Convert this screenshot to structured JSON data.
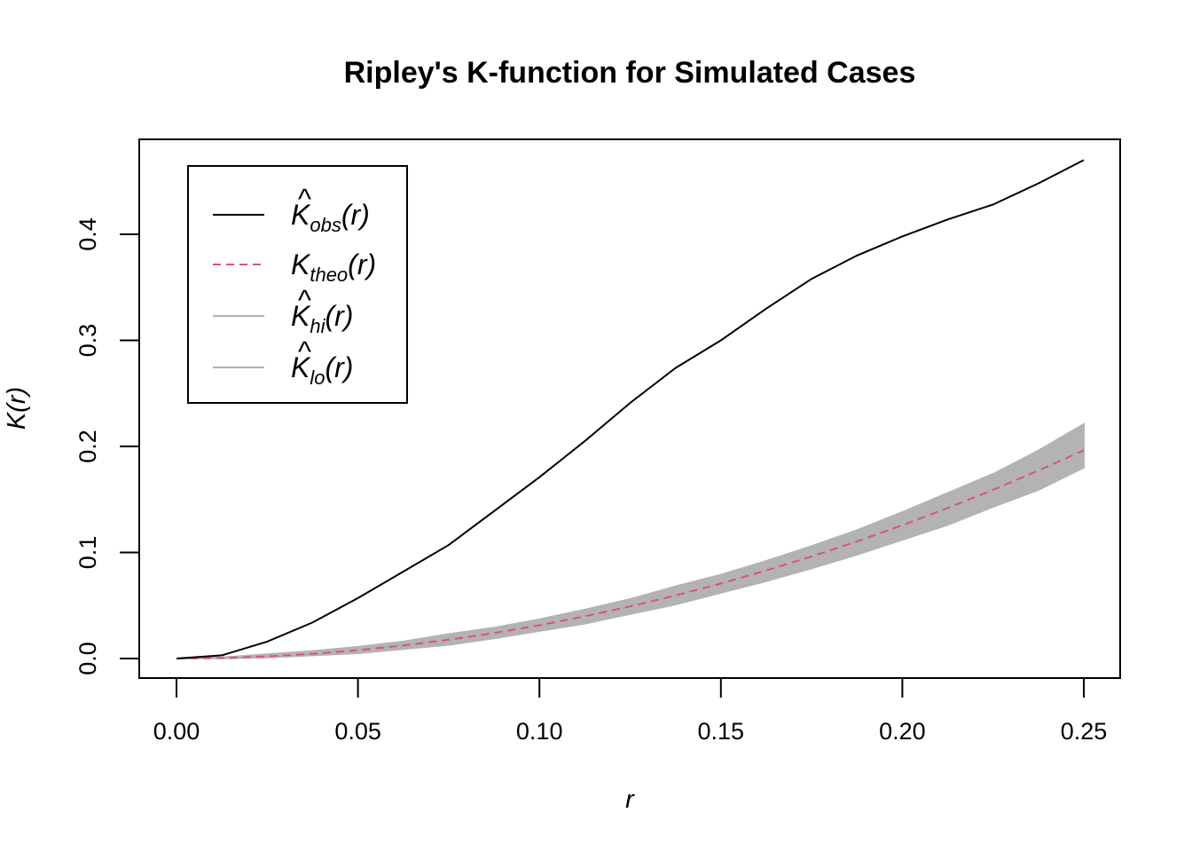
{
  "chart_data": {
    "type": "line",
    "title": "Ripley's K-function for Simulated Cases",
    "xlabel": "r",
    "ylabel": "K(r)",
    "xlim": [
      0,
      0.25
    ],
    "ylim": [
      0,
      0.47
    ],
    "x_ticks": [
      "0.00",
      "0.05",
      "0.10",
      "0.15",
      "0.20",
      "0.25"
    ],
    "y_ticks": [
      "0.0",
      "0.1",
      "0.2",
      "0.3",
      "0.4"
    ],
    "grid": false,
    "legend_position": "top-left",
    "colors": {
      "observed": "#000000",
      "theoretical": "#DF536B",
      "envelope": "#B3B3B3"
    },
    "legend": [
      {
        "base": "K",
        "hat": "^",
        "sub": "obs",
        "paren": "(r)",
        "style": "solid",
        "color": "#000000"
      },
      {
        "base": "K",
        "hat": "",
        "sub": "theo",
        "paren": "(r)",
        "style": "dashed",
        "color": "#DF536B"
      },
      {
        "base": "K",
        "hat": "^",
        "sub": "hi",
        "paren": "(r)",
        "style": "solid",
        "color": "#B3B3B3"
      },
      {
        "base": "K",
        "hat": "^",
        "sub": "lo",
        "paren": "(r)",
        "style": "solid",
        "color": "#B3B3B3"
      }
    ],
    "x": [
      0,
      0.0125,
      0.025,
      0.0375,
      0.05,
      0.0625,
      0.075,
      0.0875,
      0.1,
      0.1125,
      0.125,
      0.1375,
      0.15,
      0.1625,
      0.175,
      0.1875,
      0.2,
      0.2125,
      0.225,
      0.2375,
      0.25
    ],
    "series": [
      {
        "name": "obs",
        "values": [
          0,
          0.003,
          0.016,
          0.034,
          0.057,
          0.082,
          0.107,
          0.139,
          0.171,
          0.205,
          0.241,
          0.274,
          0.3,
          0.33,
          0.358,
          0.38,
          0.398,
          0.414,
          0.428,
          0.448,
          0.47
        ]
      },
      {
        "name": "theo",
        "values": [
          0,
          0.0005,
          0.002,
          0.0044,
          0.0079,
          0.0123,
          0.0177,
          0.024,
          0.0314,
          0.0398,
          0.0491,
          0.0594,
          0.0707,
          0.083,
          0.0962,
          0.1105,
          0.1257,
          0.1419,
          0.159,
          0.1772,
          0.1963
        ]
      },
      {
        "name": "hi",
        "values": [
          0,
          0.001,
          0.004,
          0.007,
          0.011,
          0.016,
          0.023,
          0.029,
          0.037,
          0.046,
          0.056,
          0.068,
          0.079,
          0.092,
          0.106,
          0.121,
          0.138,
          0.156,
          0.174,
          0.196,
          0.221
        ]
      },
      {
        "name": "lo",
        "values": [
          0,
          0.0002,
          0.001,
          0.003,
          0.005,
          0.009,
          0.013,
          0.019,
          0.026,
          0.033,
          0.042,
          0.051,
          0.062,
          0.073,
          0.085,
          0.098,
          0.112,
          0.126,
          0.143,
          0.159,
          0.18
        ]
      }
    ]
  }
}
